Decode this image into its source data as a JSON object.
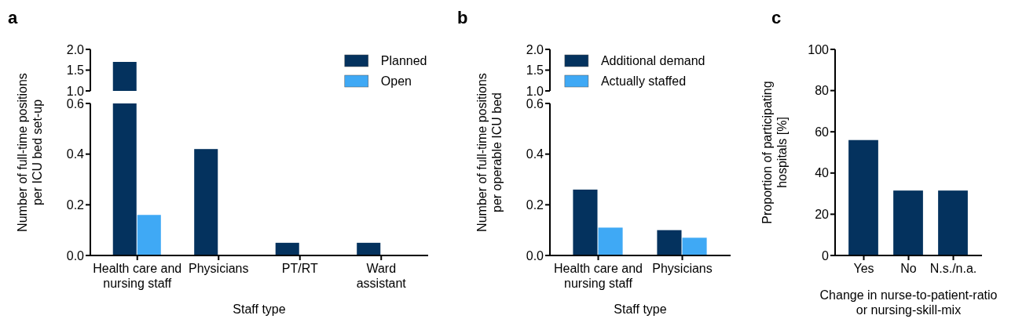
{
  "chart_data": [
    {
      "type": "bar",
      "title": "a",
      "categories": [
        null
      ],
      "series": [
        {
          "color": "#04325e",
          "values": [
            1.7
          ]
        }
      ],
      "ylim": [
        1.0,
        2.0
      ],
      "yticks": [
        {
          "value": 1,
          "label": "1.0"
        },
        {
          "value": 1.5,
          "label": "1.5"
        },
        {
          "value": 2,
          "label": "2.0"
        }
      ],
      "tick_labels": "y"
    },
    {
      "type": "bar",
      "xlabel": "Staff type",
      "ylabel": "Number of full-time positions per ICU bed set-up",
      "categories": [
        "Health care and nursing staff",
        "Physicians",
        "PT/RT",
        "Ward assistant"
      ],
      "series": [
        {
          "name": "Planned",
          "color": "#04325e",
          "values": [
            null,
            0.42,
            0.05,
            0.05
          ]
        },
        {
          "name": "Open",
          "color": "#3fa9f5",
          "values": [
            0.16,
            0,
            0,
            0
          ]
        }
      ],
      "ylim": [
        0,
        0.6
      ],
      "yticks": [
        {
          "value": 0,
          "label": "0.0"
        },
        {
          "value": 0.2,
          "label": "0.2"
        },
        {
          "value": 0.4,
          "label": "0.4"
        },
        {
          "value": 0.6,
          "label": "0.6"
        }
      ],
      "legend": "top right"
    },
    {
      "type": "other",
      "annotations": [
        "2.0",
        "1.5",
        "1.0"
      ]
    },
    {
      "type": "bar",
      "title": "b",
      "xlabel": "Staff type",
      "ylabel": "Number of full-time positions per operable ICU bed",
      "categories": [
        "Health care and nursing staff",
        "Physicians"
      ],
      "series": [
        {
          "name": "Additional demand",
          "color": "#04325e",
          "values": [
            0.26,
            0.1
          ]
        },
        {
          "name": "Actually staffed",
          "color": "#3fa9f5",
          "values": [
            0.11,
            0.07
          ]
        }
      ],
      "ylim": [
        0,
        0.6
      ],
      "yticks": [
        {
          "value": 0,
          "label": "0.0"
        },
        {
          "value": 0.2,
          "label": "0.2"
        },
        {
          "value": 0.4,
          "label": "0.4"
        },
        {
          "value": 0.6,
          "label": "0.6"
        }
      ],
      "legend": "top"
    },
    {
      "type": "bar",
      "title": "c",
      "xlabel": "Change in nurse-to-patient-ratio or nursing-skill-mix",
      "ylabel": "Proportion of participating hospitals [%]",
      "categories": [
        "Yes",
        "No",
        "N.s./n.a."
      ],
      "series": [
        {
          "color": "#04325e",
          "values": [
            56,
            31.5,
            31.5
          ]
        }
      ],
      "ylim": [
        0,
        100
      ],
      "yticks": [
        0,
        20,
        40,
        60,
        80,
        100
      ]
    }
  ]
}
